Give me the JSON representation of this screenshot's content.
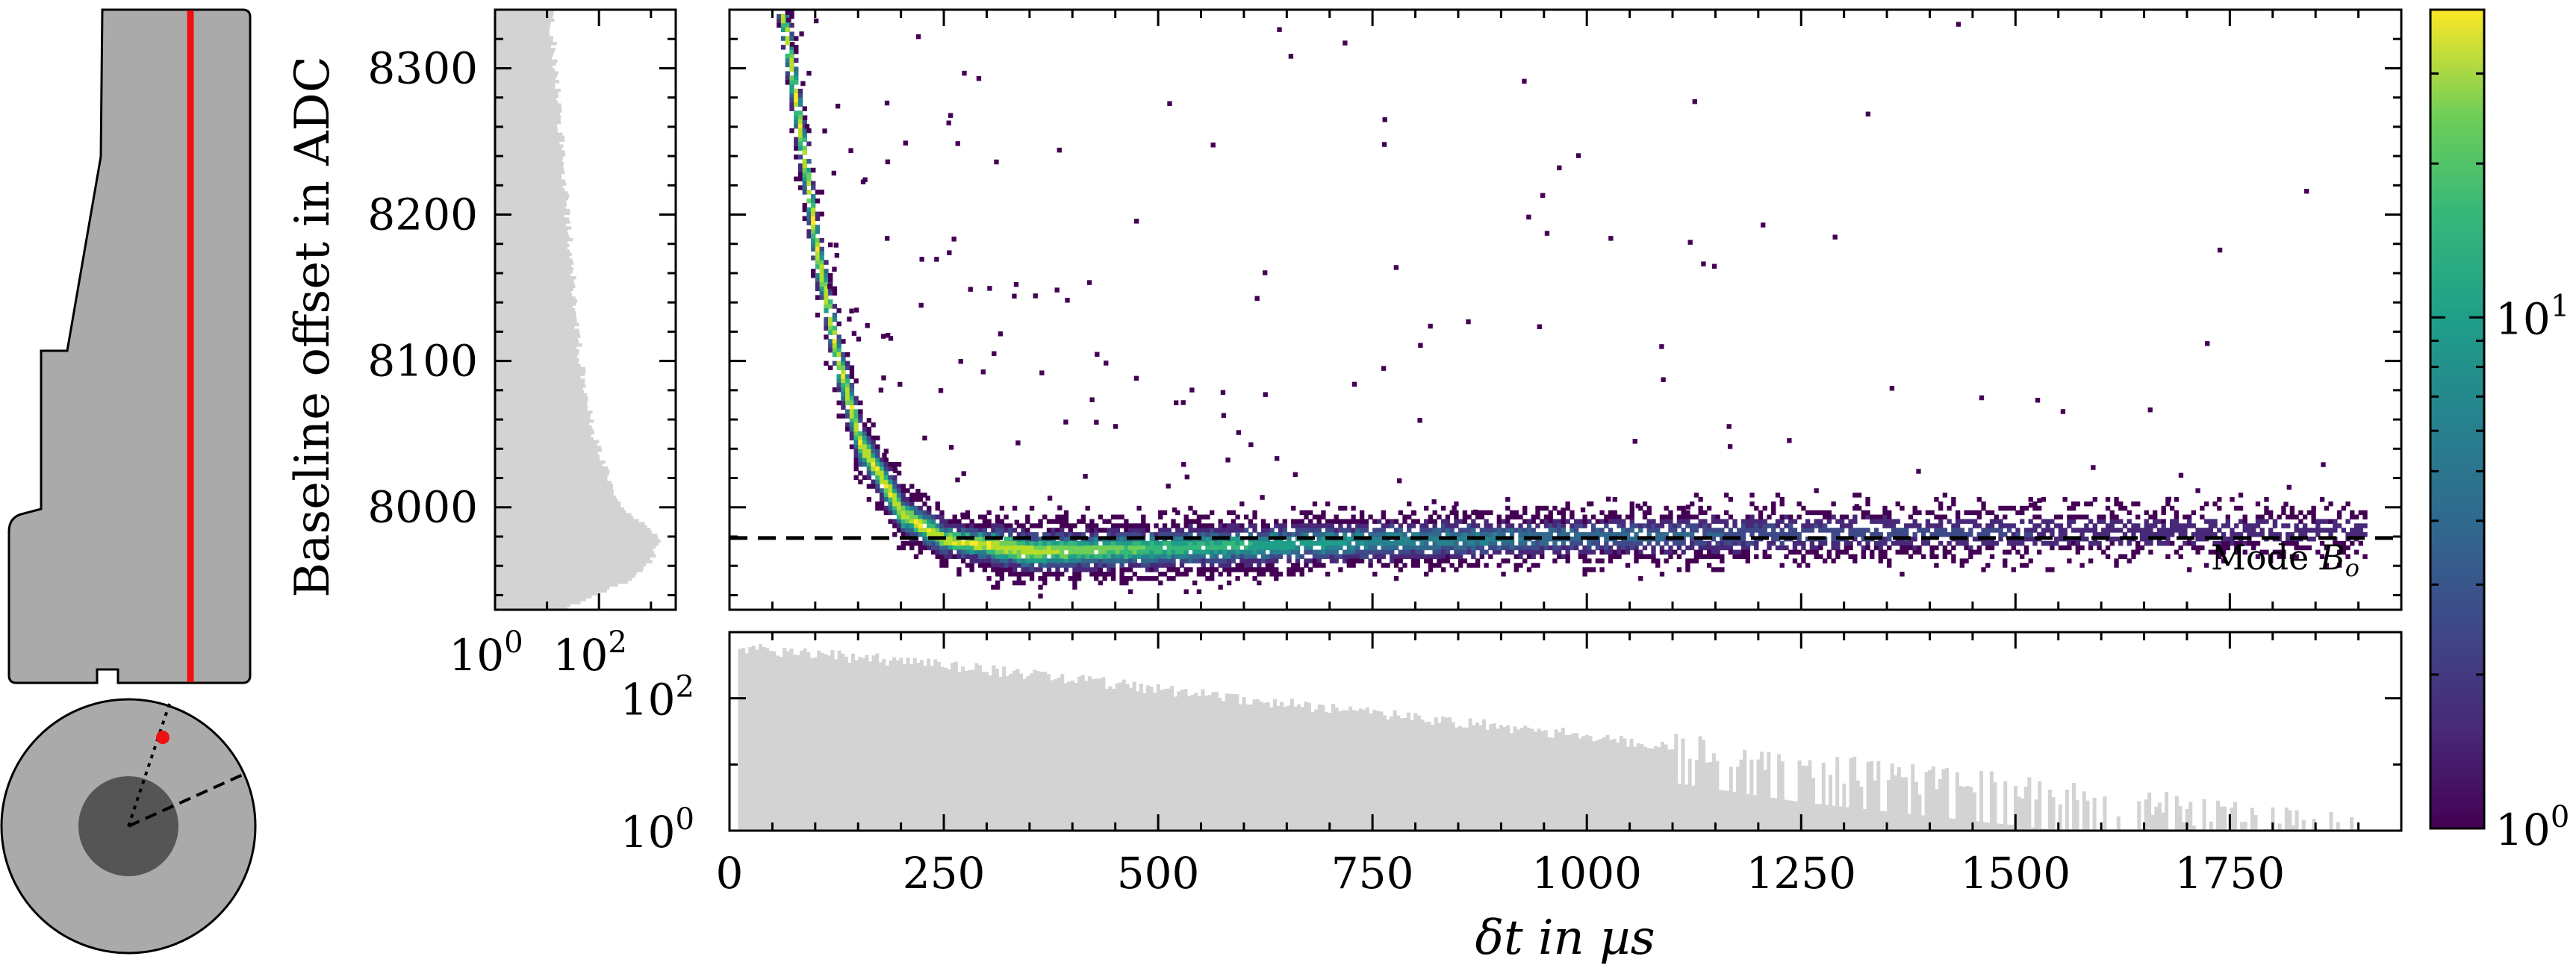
{
  "chart_data": {
    "type": "heatmap",
    "subtype": "2d-histogram-with-marginal-histograms",
    "xlabel": "δt in µs",
    "ylabel": "Baseline offset in ADC",
    "xlim": [
      0,
      1950
    ],
    "ylim": [
      7930,
      8340
    ],
    "x_ticks": [
      "0",
      "250",
      "500",
      "750",
      "1000",
      "1250",
      "1500",
      "1750"
    ],
    "x_tick_values": [
      0,
      250,
      500,
      750,
      1000,
      1250,
      1500,
      1750
    ],
    "y_ticks": [
      "8000",
      "8100",
      "8200",
      "8300"
    ],
    "y_tick_values": [
      8000,
      8100,
      8200,
      8300
    ],
    "colormap": "viridis",
    "colorbar": {
      "scale": "log",
      "range": [
        1,
        40
      ],
      "tick_labels": [
        {
          "base": "10",
          "exp": "0",
          "value": 1
        },
        {
          "base": "10",
          "exp": "1",
          "value": 10
        }
      ]
    },
    "reference_line": {
      "label_prefix": "Mode ",
      "label_var": "B",
      "label_sub": "o",
      "y": 7979,
      "style": "dashed"
    },
    "band_model": {
      "description": "ridge of counts: offset falls steeply for small δt and flattens near the mode",
      "ridge_points": [
        {
          "x": 60,
          "y": 8340
        },
        {
          "x": 80,
          "y": 8260
        },
        {
          "x": 100,
          "y": 8175
        },
        {
          "x": 125,
          "y": 8100
        },
        {
          "x": 150,
          "y": 8045
        },
        {
          "x": 200,
          "y": 7995
        },
        {
          "x": 250,
          "y": 7978
        },
        {
          "x": 350,
          "y": 7970
        },
        {
          "x": 500,
          "y": 7972
        },
        {
          "x": 750,
          "y": 7977
        },
        {
          "x": 1000,
          "y": 7980
        },
        {
          "x": 1250,
          "y": 7982
        },
        {
          "x": 1500,
          "y": 7983
        },
        {
          "x": 1900,
          "y": 7984
        }
      ]
    },
    "bottom_histogram": {
      "scale": "log",
      "y_tick_labels": [
        {
          "base": "10",
          "exp": "0",
          "value": 1
        },
        {
          "base": "10",
          "exp": "2",
          "value": 100
        }
      ],
      "ylim": [
        1,
        1000
      ],
      "approx_counts": [
        {
          "x": 0,
          "count": 600
        },
        {
          "x": 250,
          "count": 330
        },
        {
          "x": 500,
          "count": 140
        },
        {
          "x": 750,
          "count": 60
        },
        {
          "x": 1000,
          "count": 28
        },
        {
          "x": 1250,
          "count": 9
        },
        {
          "x": 1500,
          "count": 4
        },
        {
          "x": 1900,
          "count": 1
        }
      ],
      "color": "#d3d3d3"
    },
    "left_histogram": {
      "scale": "log",
      "x_tick_labels": [
        {
          "base": "10",
          "exp": "0",
          "value": 1
        },
        {
          "base": "10",
          "exp": "2",
          "value": 100
        }
      ],
      "xlim": [
        1,
        3000
      ],
      "approx_counts": [
        {
          "y": 7935,
          "count": 40
        },
        {
          "y": 7950,
          "count": 400
        },
        {
          "y": 7965,
          "count": 1100
        },
        {
          "y": 7978,
          "count": 1500
        },
        {
          "y": 7990,
          "count": 700
        },
        {
          "y": 8000,
          "count": 250
        },
        {
          "y": 8050,
          "count": 80
        },
        {
          "y": 8100,
          "count": 45
        },
        {
          "y": 8200,
          "count": 25
        },
        {
          "y": 8300,
          "count": 15
        },
        {
          "y": 8340,
          "count": 12
        }
      ],
      "color": "#d3d3d3"
    }
  },
  "schematic": {
    "fill_color": "#aaaaaa",
    "line_color": "#ee1111",
    "core_color": "#555555"
  }
}
